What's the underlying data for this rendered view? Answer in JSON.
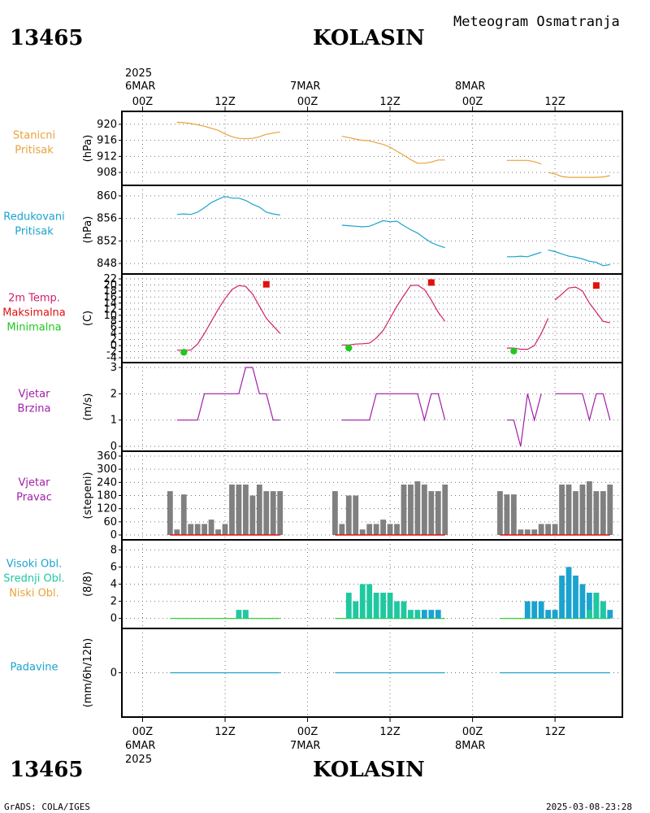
{
  "header": {
    "station_id": "13465",
    "station_name": "KOLASIN",
    "title": "Meteogram Osmatranja",
    "year": "2025"
  },
  "footer": {
    "credit": "GrADS: COLA/IGES",
    "timestamp": "2025-03-08-23:28"
  },
  "time_axis": {
    "labels": [
      "00Z",
      "12Z",
      "00Z",
      "12Z",
      "00Z",
      "12Z"
    ],
    "dates": [
      "6MAR",
      "7MAR",
      "8MAR"
    ]
  },
  "panels": [
    {
      "id": "pressure",
      "labels": [
        "Stanicni",
        "Pritisak"
      ],
      "label_colors": [
        "#e8a33c",
        "#e8a33c"
      ],
      "unit": "(hPa)"
    },
    {
      "id": "reduced",
      "labels": [
        "Redukovani",
        "Pritisak"
      ],
      "label_colors": [
        "#1ba3cf",
        "#1ba3cf"
      ],
      "unit": "(hPa)"
    },
    {
      "id": "temp",
      "labels": [
        "2m Temp.",
        "Maksimalna",
        "Minimalna"
      ],
      "label_colors": [
        "#d01e6a",
        "#e01010",
        "#1fc81f"
      ],
      "unit": "(C)"
    },
    {
      "id": "wind_speed",
      "labels": [
        "Vjetar",
        "Brzina"
      ],
      "label_colors": [
        "#a01ea8",
        "#a01ea8"
      ],
      "unit": "(m/s)"
    },
    {
      "id": "wind_dir",
      "labels": [
        "Vjetar",
        "Pravac"
      ],
      "label_colors": [
        "#a01ea8",
        "#a01ea8"
      ],
      "unit": "(stepeni)"
    },
    {
      "id": "clouds",
      "labels": [
        "Visoki Obl.",
        "Srednji Obl.",
        "Niski Obl."
      ],
      "label_colors": [
        "#1ba3cf",
        "#1fc8a0",
        "#e8a33c"
      ],
      "unit": "(8/8)"
    },
    {
      "id": "precip",
      "labels": [
        "Padavine"
      ],
      "label_colors": [
        "#1ba3cf"
      ],
      "unit": "(mm/6h/12h)"
    }
  ],
  "chart_data": [
    {
      "id": "pressure",
      "type": "line",
      "ylim": [
        906,
        922
      ],
      "yticks": [
        908,
        912,
        916,
        920
      ],
      "color": "#e8a33c",
      "segments": [
        {
          "x": [
            5,
            6,
            7,
            8,
            9,
            10,
            11,
            12,
            13,
            14,
            15,
            16,
            17,
            18,
            19,
            20
          ],
          "y": [
            920.5,
            920.4,
            920.2,
            919.9,
            919.5,
            919,
            918.5,
            917.6,
            916.9,
            916.5,
            916.4,
            916.5,
            916.9,
            917.5,
            917.8,
            918.1
          ]
        },
        {
          "x": [
            29,
            30,
            31,
            32,
            33,
            34,
            35,
            36,
            37,
            38,
            39,
            40,
            41,
            42,
            43,
            44
          ],
          "y": [
            917,
            916.7,
            916.3,
            916,
            915.9,
            915.4,
            915,
            914.3,
            913.3,
            912.3,
            911.2,
            910.3,
            910.3,
            910.6,
            911.1,
            911.1
          ]
        },
        {
          "x": [
            53,
            54,
            55,
            56,
            57,
            58
          ],
          "y": [
            911,
            911,
            911,
            911,
            910.7,
            910.1
          ]
        },
        {
          "x": [
            59,
            60,
            61,
            62,
            63,
            64,
            65,
            66,
            67,
            68
          ],
          "y": [
            908,
            907.6,
            907,
            906.8,
            906.8,
            906.8,
            906.8,
            906.8,
            906.9,
            907.2
          ]
        }
      ]
    },
    {
      "id": "reduced",
      "type": "line",
      "ylim": [
        847,
        861
      ],
      "yticks": [
        848,
        852,
        856,
        860
      ],
      "color": "#1ba3cf",
      "segments": [
        {
          "x": [
            5,
            6,
            7,
            8,
            9,
            10,
            11,
            12,
            13,
            14,
            15,
            16,
            17,
            18,
            19,
            20
          ],
          "y": [
            856.7,
            856.8,
            856.7,
            857.1,
            857.9,
            858.8,
            859.4,
            859.9,
            859.6,
            859.6,
            859.2,
            858.5,
            858,
            857.1,
            856.8,
            856.6
          ]
        },
        {
          "x": [
            29,
            30,
            31,
            32,
            33,
            34,
            35,
            36,
            37,
            38,
            39,
            40,
            41,
            42,
            43,
            44
          ],
          "y": [
            854.8,
            854.7,
            854.6,
            854.5,
            854.6,
            855.1,
            855.6,
            855.4,
            855.5,
            854.7,
            854,
            853.4,
            852.5,
            851.7,
            851.2,
            850.8
          ]
        },
        {
          "x": [
            53,
            54,
            55,
            56,
            57,
            58
          ],
          "y": [
            849.2,
            849.2,
            849.3,
            849.2,
            849.6,
            850
          ]
        },
        {
          "x": [
            59,
            60,
            61,
            62,
            63,
            64,
            65,
            66,
            67,
            68
          ],
          "y": [
            850.4,
            850.1,
            849.7,
            849.3,
            849.1,
            848.8,
            848.4,
            848.2,
            847.6,
            847.8
          ]
        }
      ]
    },
    {
      "id": "temp",
      "type": "line",
      "ylim": [
        -4,
        22
      ],
      "yticks": [
        -4,
        -2,
        0,
        2,
        4,
        6,
        8,
        10,
        12,
        14,
        16,
        18,
        20,
        22
      ],
      "color": "#d01e6a",
      "segments": [
        {
          "x": [
            5,
            6,
            7,
            8,
            9,
            10,
            11,
            12,
            13,
            14,
            15,
            16,
            17,
            18,
            19,
            20
          ],
          "y": [
            -1.5,
            -1.5,
            -1.5,
            0.5,
            4,
            8,
            12,
            15.5,
            18.5,
            19.8,
            19.5,
            17,
            13,
            9,
            6.5,
            4
          ]
        },
        {
          "x": [
            29,
            30,
            31,
            32,
            33,
            34,
            35,
            36,
            37,
            38,
            39,
            40,
            41,
            42,
            43,
            44
          ],
          "y": [
            0.2,
            0.2,
            0.5,
            0.6,
            0.8,
            2.5,
            5,
            9,
            13,
            16.5,
            19.8,
            19.9,
            18.5,
            15,
            11,
            8
          ]
        },
        {
          "x": [
            53,
            54,
            55,
            56,
            57,
            58
          ],
          "y": [
            -0.8,
            -0.8,
            -1.2,
            -1.2,
            0,
            4
          ]
        },
        {
          "x": [
            58,
            59
          ],
          "y": [
            4,
            9
          ]
        },
        {
          "x": [
            60,
            61,
            62,
            63,
            64,
            65,
            66,
            67,
            68
          ],
          "y": [
            15,
            17,
            19,
            19.3,
            18,
            14,
            11,
            8,
            7.5
          ]
        }
      ],
      "max_points": {
        "color": "#e01010",
        "x": [
          18,
          42,
          66
        ],
        "y": [
          20.2,
          20.8,
          19.8
        ]
      },
      "min_points": {
        "color": "#1fc81f",
        "x": [
          6,
          30,
          54
        ],
        "y": [
          -2.2,
          -0.8,
          -1.8
        ]
      }
    },
    {
      "id": "wind_speed",
      "type": "line",
      "ylim": [
        0,
        3
      ],
      "yticks": [
        0,
        1,
        2,
        3
      ],
      "color": "#a01ea8",
      "segments": [
        {
          "x": [
            5,
            6,
            7,
            8,
            9,
            10,
            11,
            12,
            13,
            14,
            15,
            16,
            17,
            18,
            19,
            20
          ],
          "y": [
            1,
            1,
            1,
            1,
            2,
            2,
            2,
            2,
            2,
            2,
            3,
            3,
            2,
            2,
            1,
            1
          ]
        },
        {
          "x": [
            29,
            30,
            31,
            32,
            33,
            34,
            35,
            36,
            37,
            38,
            39,
            40,
            41,
            42,
            43,
            44
          ],
          "y": [
            1,
            1,
            1,
            1,
            1,
            2,
            2,
            2,
            2,
            2,
            2,
            2,
            1,
            2,
            2,
            1
          ]
        },
        {
          "x": [
            53,
            54,
            55,
            56,
            57,
            58
          ],
          "y": [
            1,
            1,
            0,
            2,
            1,
            2
          ]
        },
        {
          "x": [
            60,
            61,
            62,
            63,
            64,
            65,
            66,
            67,
            68
          ],
          "y": [
            2,
            2,
            2,
            2,
            2,
            1,
            2,
            2,
            1
          ]
        }
      ]
    },
    {
      "id": "wind_dir",
      "type": "bar",
      "ylim": [
        0,
        360
      ],
      "yticks": [
        0,
        60,
        120,
        180,
        240,
        300,
        360
      ],
      "color": "#808080",
      "x": [
        4,
        5,
        6,
        7,
        8,
        9,
        10,
        11,
        12,
        13,
        14,
        15,
        16,
        17,
        18,
        19,
        20,
        28,
        29,
        30,
        31,
        32,
        33,
        34,
        35,
        36,
        37,
        38,
        39,
        40,
        41,
        42,
        43,
        44,
        52,
        53,
        54,
        55,
        56,
        57,
        58,
        59,
        60,
        61,
        62,
        63,
        64,
        65,
        66,
        67,
        68
      ],
      "values": [
        200,
        25,
        185,
        50,
        50,
        50,
        70,
        25,
        50,
        230,
        230,
        230,
        180,
        230,
        200,
        200,
        200,
        200,
        50,
        180,
        180,
        25,
        50,
        50,
        70,
        50,
        50,
        230,
        230,
        245,
        230,
        200,
        200,
        230,
        200,
        185,
        185,
        25,
        25,
        25,
        50,
        50,
        50,
        230,
        230,
        200,
        230,
        245,
        200,
        200,
        230
      ],
      "calm_line": {
        "color": "#e01010",
        "segments": [
          [
            4,
            20
          ],
          [
            28,
            44
          ],
          [
            52,
            68
          ]
        ]
      }
    },
    {
      "id": "clouds",
      "type": "bar",
      "ylim": [
        -0.6,
        8.6
      ],
      "yticks": [
        0,
        2,
        4,
        6,
        8
      ],
      "series": [
        {
          "name": "Visoki Obl.",
          "color": "#1ba3cf",
          "x": [
            33,
            34,
            35,
            36,
            37,
            38,
            39,
            40,
            41,
            42,
            43,
            44,
            56,
            57,
            58,
            59,
            60,
            61,
            62,
            63,
            64,
            65,
            66,
            67,
            68
          ],
          "values": [
            0,
            0,
            0,
            0,
            0,
            0,
            0,
            0,
            1,
            1,
            1,
            0,
            2,
            2,
            2,
            1,
            1,
            5,
            6,
            5,
            4,
            3,
            3,
            2,
            1
          ]
        },
        {
          "name": "Srednji Obl.",
          "color": "#1fc8a0",
          "x": [
            14,
            15,
            30,
            31,
            32,
            33,
            34,
            35,
            36,
            37,
            38,
            39,
            40,
            41,
            42,
            43,
            44,
            58,
            59,
            60,
            61,
            62,
            63,
            64,
            65,
            66,
            67,
            68
          ],
          "values": [
            1,
            1,
            3,
            2,
            4,
            4,
            3,
            3,
            3,
            2,
            2,
            1,
            1,
            0,
            0,
            0,
            0,
            0,
            0,
            0,
            0,
            0,
            0,
            0,
            1,
            3,
            2,
            0
          ]
        },
        {
          "name": "Niski Obl.",
          "color": "#e8a33c",
          "x": [],
          "values": []
        }
      ],
      "baseline_segments": [
        [
          4,
          20
        ],
        [
          28,
          44
        ],
        [
          52,
          68
        ]
      ]
    },
    {
      "id": "precip",
      "type": "line",
      "ylim": [
        -5,
        5
      ],
      "yticks": [
        0
      ],
      "color": "#1ba3cf",
      "segments": [
        {
          "x": [
            4,
            20
          ],
          "y": [
            0,
            0
          ]
        },
        {
          "x": [
            28,
            44
          ],
          "y": [
            0,
            0
          ]
        },
        {
          "x": [
            52,
            68
          ],
          "y": [
            0,
            0
          ]
        }
      ]
    }
  ]
}
